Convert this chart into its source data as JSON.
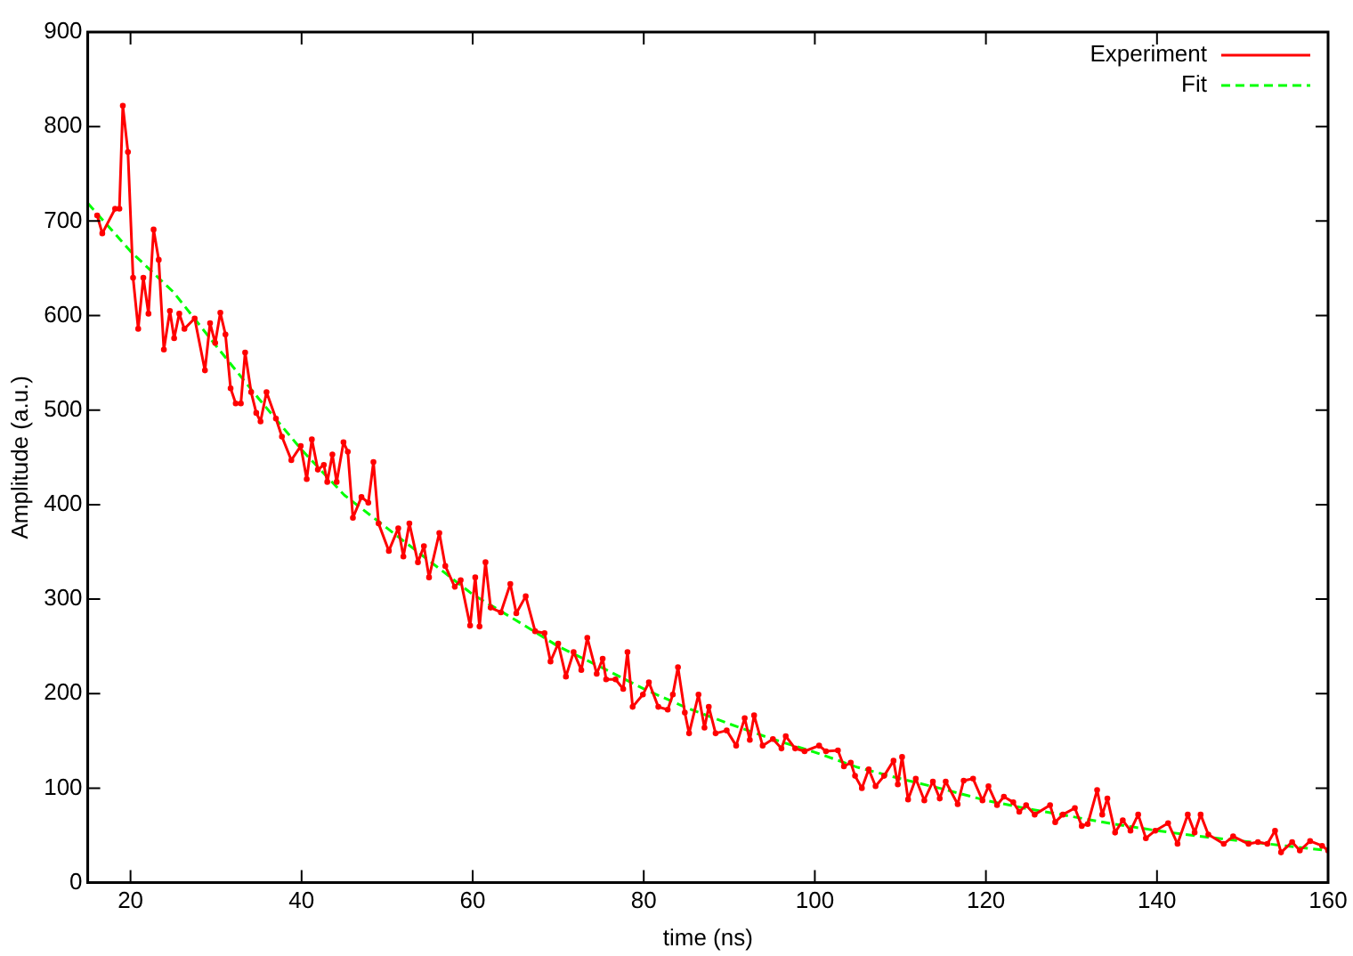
{
  "chart_data": {
    "type": "line",
    "xlabel": "time (ns)",
    "ylabel": "Amplitude (a.u.)",
    "xlim": [
      15,
      160
    ],
    "ylim": [
      0,
      900
    ],
    "xticks": [
      20,
      40,
      60,
      80,
      100,
      120,
      140,
      160
    ],
    "yticks": [
      0,
      100,
      200,
      300,
      400,
      500,
      600,
      700,
      800,
      900
    ],
    "grid": false,
    "legend": "top right",
    "series": [
      {
        "name": "Experiment",
        "color": "#ff0000",
        "line_style": "solid",
        "marker": "circle",
        "x": [
          16.1,
          16.7,
          18.2,
          18.7,
          19.1,
          19.7,
          20.3,
          20.9,
          21.5,
          22.1,
          22.7,
          23.3,
          23.9,
          24.6,
          25.1,
          25.7,
          26.3,
          27.5,
          28.7,
          29.3,
          29.9,
          30.5,
          31.1,
          31.7,
          32.3,
          32.9,
          33.4,
          34.1,
          34.7,
          35.2,
          35.9,
          37,
          37.7,
          38.8,
          39.9,
          40.6,
          41.2,
          41.9,
          42.6,
          43,
          43.6,
          44.1,
          44.9,
          45.4,
          46,
          47,
          47.8,
          48.4,
          49,
          50.2,
          51.3,
          51.9,
          52.6,
          53.6,
          54.3,
          54.9,
          56.1,
          56.8,
          57.9,
          58.6,
          59.7,
          60.3,
          60.8,
          61.5,
          62.1,
          63.3,
          64.4,
          65.1,
          66.2,
          67.3,
          68.4,
          69.1,
          70,
          70.9,
          71.8,
          72.7,
          73.4,
          74.5,
          75.2,
          75.6,
          76.7,
          77.6,
          78.1,
          78.7,
          79.9,
          80.6,
          81.7,
          82.8,
          83.4,
          84,
          84.8,
          85.3,
          86.4,
          87.1,
          87.6,
          88.4,
          89.7,
          90.8,
          91.8,
          92.4,
          92.9,
          93.9,
          95.1,
          96.1,
          96.6,
          97.7,
          98.8,
          100.5,
          101.3,
          102.7,
          103.4,
          104.2,
          104.7,
          105.5,
          106.3,
          107.1,
          108.1,
          109.2,
          109.7,
          110.2,
          110.9,
          111.8,
          112.8,
          113.8,
          114.6,
          115.3,
          116.7,
          117.4,
          118.5,
          119.6,
          120.3,
          121.3,
          122.1,
          123.2,
          123.9,
          124.7,
          125.7,
          127.5,
          128.1,
          129,
          130.4,
          131.2,
          131.9,
          133,
          133.6,
          134.2,
          135.1,
          136,
          136.9,
          137.8,
          138.7,
          139.8,
          141.3,
          142.4,
          143.6,
          144.4,
          145.1,
          146,
          147.8,
          148.9,
          150.7,
          151.8,
          152.9,
          153.8,
          154.5,
          155.8,
          156.7,
          157.9,
          159.3,
          160
        ],
        "values": [
          706,
          687,
          713,
          713,
          822,
          773,
          640,
          586,
          640,
          602,
          691,
          659,
          564,
          605,
          576,
          602,
          586,
          597,
          542,
          592,
          571,
          603,
          580,
          523,
          507,
          507,
          561,
          519,
          497,
          488,
          519,
          491,
          472,
          447,
          462,
          427,
          469,
          437,
          442,
          424,
          453,
          424,
          466,
          456,
          386,
          408,
          402,
          445,
          380,
          351,
          375,
          345,
          380,
          339,
          356,
          323,
          370,
          335,
          313,
          320,
          272,
          323,
          271,
          339,
          291,
          286,
          316,
          285,
          303,
          266,
          264,
          234,
          253,
          218,
          244,
          225,
          259,
          221,
          237,
          215,
          215,
          205,
          244,
          186,
          199,
          212,
          186,
          183,
          199,
          228,
          180,
          158,
          199,
          164,
          186,
          158,
          161,
          145,
          174,
          151,
          177,
          145,
          152,
          142,
          155,
          142,
          139,
          145,
          139,
          140,
          123,
          127,
          113,
          100,
          120,
          102,
          113,
          129,
          104,
          133,
          88,
          110,
          87,
          107,
          89,
          107,
          83,
          108,
          110,
          87,
          102,
          82,
          91,
          85,
          75,
          82,
          72,
          82,
          64,
          72,
          79,
          60,
          62,
          98,
          72,
          89,
          53,
          66,
          55,
          72,
          47,
          55,
          63,
          41,
          72,
          53,
          72,
          51,
          41,
          49,
          41,
          43,
          41,
          55,
          32,
          43,
          34,
          44,
          39,
          34
        ]
      },
      {
        "name": "Fit",
        "color": "#00ff00",
        "line_style": "dashed",
        "x": [
          15,
          20,
          25,
          30,
          35,
          40,
          45,
          50,
          55,
          60,
          65,
          70,
          75,
          80,
          85,
          90,
          95,
          100,
          105,
          110,
          115,
          120,
          125,
          130,
          135,
          140,
          145,
          150,
          155,
          160
        ],
        "values": [
          719,
          668,
          625,
          568,
          512,
          458,
          410,
          375,
          340,
          305,
          278,
          250,
          228,
          205,
          185,
          168,
          152,
          138,
          122,
          110,
          99,
          87,
          78,
          70,
          62,
          55,
          49,
          44,
          39,
          34
        ]
      }
    ]
  }
}
